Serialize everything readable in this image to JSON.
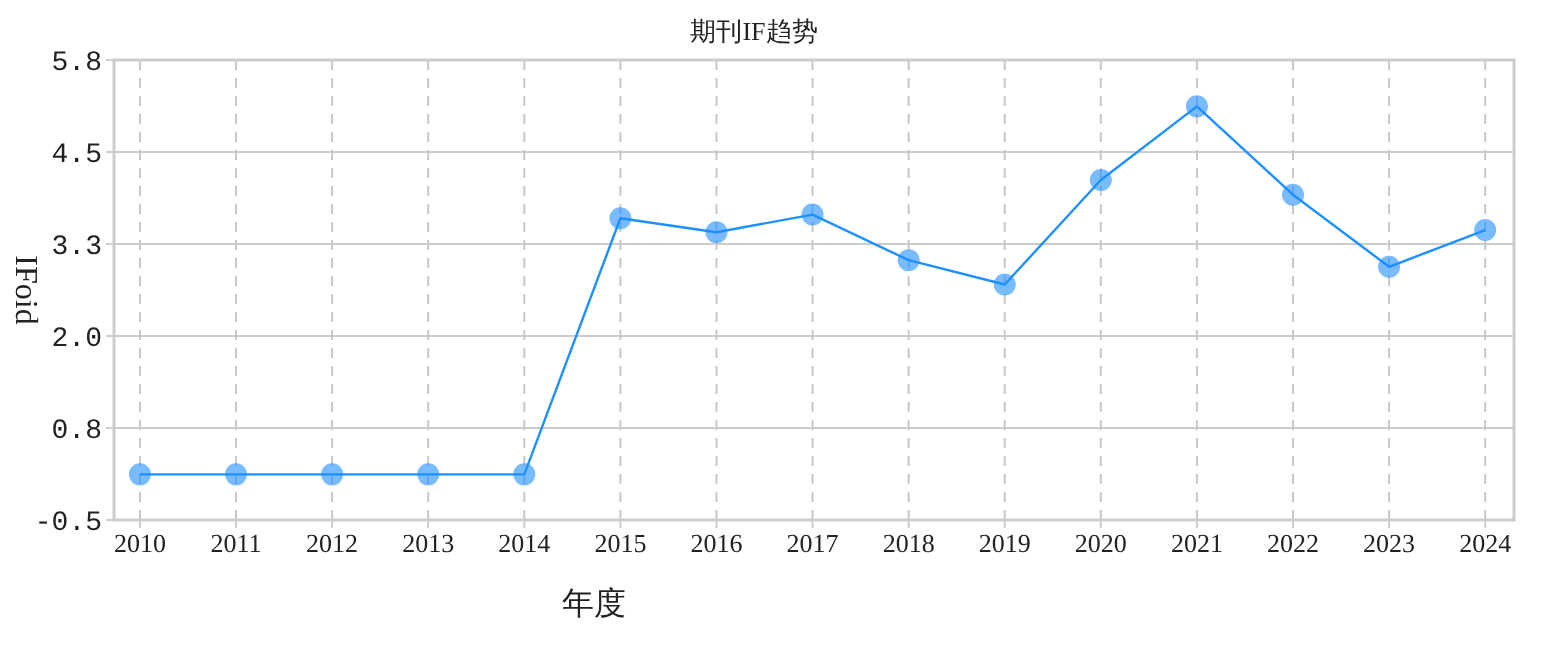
{
  "chart_data": {
    "type": "line",
    "title": "期刊IF趋势",
    "xlabel": "年度",
    "ylabel": "IFoid",
    "categories": [
      "2010",
      "2011",
      "2012",
      "2013",
      "2014",
      "2015",
      "2016",
      "2017",
      "2018",
      "2019",
      "2020",
      "2021",
      "2022",
      "2023",
      "2024"
    ],
    "series": [
      {
        "color": "#1e90ff",
        "values": [
          0.12,
          0.12,
          0.12,
          0.12,
          0.12,
          3.6,
          3.41,
          3.65,
          3.03,
          2.7,
          4.12,
          5.12,
          3.92,
          2.94,
          3.44
        ]
      }
    ],
    "ylim": [
      -0.5,
      5.75
    ],
    "yticks": [
      -0.5,
      {
        "value": 0.75,
        "label": "0.8"
      },
      {
        "value": 2,
        "label": "2.0"
      },
      {
        "value": 3.25,
        "label": "3.3"
      },
      4.5,
      {
        "value": 5.75,
        "label": "5.8"
      }
    ],
    "grid": true,
    "marker": "circle",
    "line_style": "solid"
  }
}
